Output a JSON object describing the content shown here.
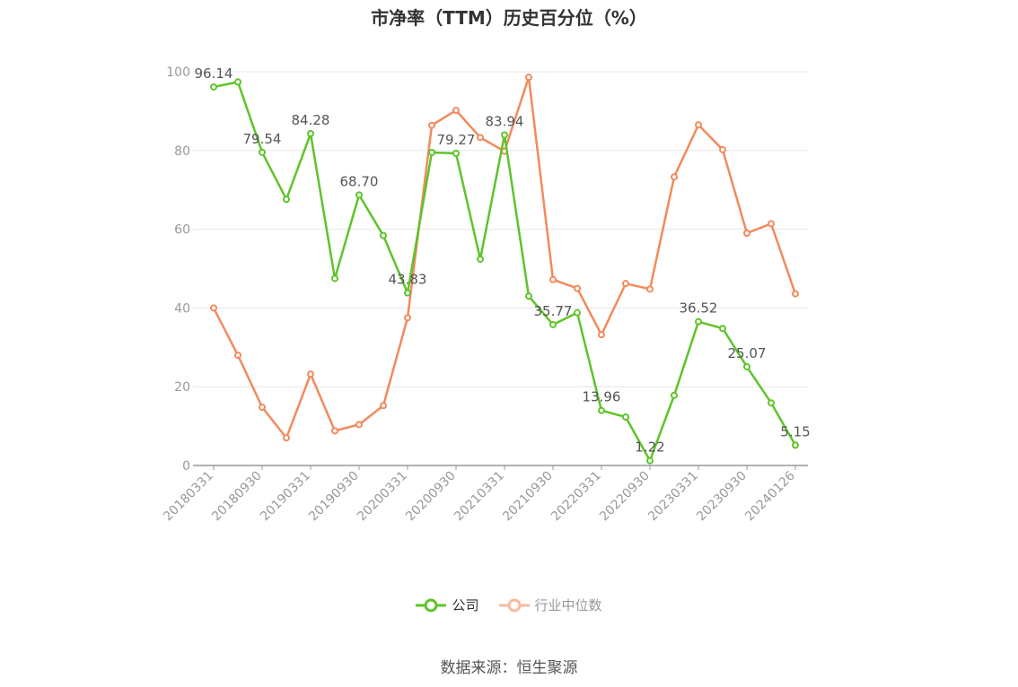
{
  "title": "市净率（TTM）历史百分位（%）",
  "source": "数据来源：恒生聚源",
  "colors": {
    "company": "#5ec42a",
    "industry": "#f28a5c",
    "grid": "#e6e6e6",
    "axis": "#999999",
    "text": "#999999",
    "label": "#555555"
  },
  "legend": [
    {
      "name": "公司",
      "color": "#5ec42a"
    },
    {
      "name": "行业中位数",
      "color": "#f8b99d"
    }
  ],
  "chart_data": {
    "type": "line",
    "title": "市净率（TTM）历史百分位（%）",
    "x": [
      "20180331",
      "20180630",
      "20180930",
      "20181231",
      "20190331",
      "20190630",
      "20190930",
      "20191231",
      "20200331",
      "20200630",
      "20200930",
      "20201231",
      "20210331",
      "20210630",
      "20210930",
      "20211231",
      "20220331",
      "20220630",
      "20220930",
      "20221231",
      "20230331",
      "20230630",
      "20230930",
      "20231231",
      "20240126"
    ],
    "x_tick_labels": [
      "20180331",
      "20180930",
      "20190331",
      "20190930",
      "20200331",
      "20200930",
      "20210331",
      "20210930",
      "20220331",
      "20220930",
      "20230331",
      "20230930",
      "20240126"
    ],
    "y_ticks": [
      "0",
      "20",
      "40",
      "60",
      "80",
      "100"
    ],
    "ylim": [
      0,
      100
    ],
    "grid": true,
    "legend_position": "bottom",
    "series": [
      {
        "name": "公司",
        "values": [
          96.14,
          97.4,
          79.54,
          67.6,
          84.28,
          47.5,
          68.7,
          58.4,
          43.83,
          79.5,
          79.27,
          52.4,
          83.94,
          43.0,
          35.77,
          38.8,
          13.96,
          12.3,
          1.22,
          17.8,
          36.52,
          34.8,
          25.07,
          15.9,
          5.15
        ]
      },
      {
        "name": "行业中位数",
        "values": [
          40.0,
          28.0,
          14.8,
          7.0,
          23.2,
          8.8,
          10.4,
          15.2,
          37.5,
          86.4,
          90.2,
          83.3,
          79.8,
          98.6,
          47.2,
          45.0,
          33.2,
          46.2,
          44.8,
          73.3,
          86.5,
          80.2,
          59.0,
          61.4,
          43.6
        ]
      }
    ],
    "data_labels": [
      {
        "index": 0,
        "text": "96.14"
      },
      {
        "index": 2,
        "text": "79.54"
      },
      {
        "index": 4,
        "text": "84.28"
      },
      {
        "index": 6,
        "text": "68.70"
      },
      {
        "index": 8,
        "text": "43.83"
      },
      {
        "index": 10,
        "text": "79.27"
      },
      {
        "index": 12,
        "text": "83.94"
      },
      {
        "index": 14,
        "text": "35.77"
      },
      {
        "index": 16,
        "text": "13.96"
      },
      {
        "index": 18,
        "text": "1.22"
      },
      {
        "index": 20,
        "text": "36.52"
      },
      {
        "index": 22,
        "text": "25.07"
      },
      {
        "index": 24,
        "text": "5.15"
      }
    ]
  }
}
